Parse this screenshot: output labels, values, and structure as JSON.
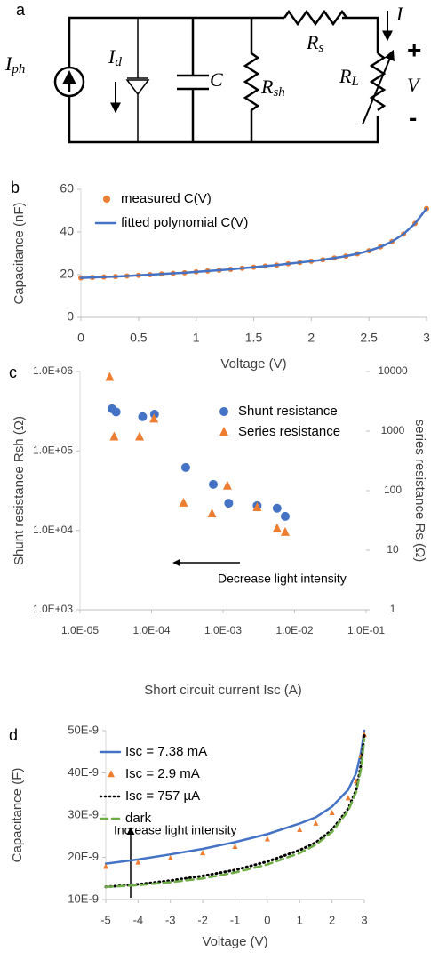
{
  "circuit": {
    "panel": "a",
    "source": [
      "I",
      "ph"
    ],
    "diode_current": [
      "I",
      "d"
    ],
    "capacitor": "C",
    "shunt": [
      "R",
      "sh"
    ],
    "series": [
      "R",
      "s"
    ],
    "load": [
      "R",
      "L"
    ],
    "current": "I",
    "plus": "+",
    "voltage": "V",
    "minus": "-"
  },
  "chart_data": [
    {
      "type": "line",
      "panel": "b",
      "xlabel": "Voltage (V)",
      "ylabel": "Capacitance (nF)",
      "x": [
        0,
        0.1,
        0.2,
        0.3,
        0.4,
        0.5,
        0.6,
        0.7,
        0.8,
        0.9,
        1,
        1.1,
        1.2,
        1.3,
        1.4,
        1.5,
        1.6,
        1.7,
        1.8,
        1.9,
        2,
        2.1,
        2.2,
        2.3,
        2.4,
        2.5,
        2.6,
        2.7,
        2.8,
        2.9,
        3
      ],
      "xlim": [
        0,
        3
      ],
      "xticks": [
        0,
        0.5,
        1,
        1.5,
        2,
        2.5,
        3
      ],
      "ylim": [
        0,
        60
      ],
      "yticks": [
        0,
        20,
        40,
        60
      ],
      "legend": "upper left",
      "series": [
        {
          "name": "measured C(V)",
          "color": "#ed7d31",
          "marker": "circle",
          "values": [
            18.5,
            18.7,
            18.9,
            19.1,
            19.4,
            19.7,
            20.0,
            20.3,
            20.6,
            20.9,
            21.3,
            21.7,
            22.1,
            22.5,
            23.0,
            23.5,
            24.0,
            24.5,
            25.1,
            25.7,
            26.3,
            27.0,
            27.8,
            28.7,
            29.8,
            31.2,
            33.0,
            35.5,
            39.0,
            44.0,
            51.0
          ]
        },
        {
          "name": "fitted polynomial C(V)",
          "color": "#4472c4",
          "line": "solid",
          "values": [
            18.5,
            18.7,
            18.9,
            19.1,
            19.4,
            19.7,
            20.0,
            20.3,
            20.6,
            20.9,
            21.3,
            21.7,
            22.1,
            22.5,
            23.0,
            23.5,
            24.0,
            24.5,
            25.1,
            25.7,
            26.3,
            27.0,
            27.8,
            28.7,
            29.8,
            31.2,
            33.0,
            35.5,
            39.0,
            44.0,
            51.0
          ]
        }
      ]
    },
    {
      "type": "scatter",
      "panel": "c",
      "xlabel": "Short circuit current Isc (A)",
      "ylabel": "Shunt resistance Rsh (Ω)",
      "y2label": "series resistance Rs (Ω)",
      "annotation": "Decrease light intensity",
      "xscale": "log",
      "yscale": "log",
      "y2scale": "log",
      "legend": "upper right",
      "xlim": [
        1e-05,
        0.1
      ],
      "xticks": [
        {
          "value": 1e-05,
          "label": "1.0E-05"
        },
        {
          "value": 0.0001,
          "label": "1.0E-04"
        },
        {
          "value": 0.001,
          "label": "1.0E-03"
        },
        {
          "value": 0.01,
          "label": "1.0E-02"
        },
        {
          "value": 0.1,
          "label": "1.0E-01"
        }
      ],
      "ylim": [
        1000,
        1000000
      ],
      "yticks": [
        {
          "value": 1000,
          "label": "1.0E+03"
        },
        {
          "value": 10000,
          "label": "1.0E+04"
        },
        {
          "value": 100000,
          "label": "1.0E+05"
        },
        {
          "value": 1000000,
          "label": "1.0E+06"
        }
      ],
      "y2lim": [
        1,
        10000
      ],
      "y2ticks": [
        1,
        10,
        100,
        1000,
        10000
      ],
      "series": [
        {
          "name": "Shunt resistance",
          "color": "#4472c4",
          "marker": "circle",
          "x": [
            2.8e-05,
            3.2e-05,
            7.5e-05,
            0.00011,
            0.0003,
            0.00073,
            0.0012,
            0.003,
            0.0057,
            0.0074
          ],
          "values": [
            340000,
            310000,
            270000,
            290000,
            62000,
            38000,
            22000,
            20500,
            19000,
            15000
          ]
        },
        {
          "name": "Series resistance",
          "color": "#ed7d31",
          "marker": "triangle",
          "axis": "y2",
          "x": [
            2.6e-05,
            3e-05,
            6.8e-05,
            0.000108,
            0.00028,
            0.0007,
            0.00115,
            0.003,
            0.0057,
            0.0074
          ],
          "values": [
            8000,
            800,
            800,
            1600,
            62,
            41,
            120,
            52,
            23,
            20
          ]
        }
      ]
    },
    {
      "type": "line",
      "panel": "d",
      "xlabel": "Voltage (V)",
      "ylabel": "Capacitance (F)",
      "annotation": "Increase light intensity",
      "legend": "upper left",
      "x": [
        -5,
        -4,
        -3,
        -2,
        -1,
        0,
        1,
        1.5,
        2,
        2.5,
        2.75,
        2.9,
        3
      ],
      "xlim": [
        -5,
        3
      ],
      "xticks": [
        -5,
        -4,
        -3,
        -2,
        -1,
        0,
        1,
        2,
        3
      ],
      "ylim": [
        1e-08,
        5e-08
      ],
      "yticks": [
        {
          "value": 1e-08,
          "label": "10E-9"
        },
        {
          "value": 2e-08,
          "label": "20E-9"
        },
        {
          "value": 3e-08,
          "label": "30E-9"
        },
        {
          "value": 4e-08,
          "label": "40E-9"
        },
        {
          "value": 5e-08,
          "label": "50E-9"
        }
      ],
      "series": [
        {
          "name": "Isc = 7.38 mA",
          "color": "#4472c4",
          "line": "solid",
          "values": [
            1.85e-08,
            1.95e-08,
            2.07e-08,
            2.2e-08,
            2.36e-08,
            2.55e-08,
            2.8e-08,
            2.95e-08,
            3.2e-08,
            3.6e-08,
            4e-08,
            4.5e-08,
            5e-08
          ]
        },
        {
          "name": "Isc = 2.9 mA",
          "color": "#ed7d31",
          "marker": "triangle",
          "values": [
            1.78e-08,
            1.88e-08,
            1.98e-08,
            2.1e-08,
            2.25e-08,
            2.43e-08,
            2.65e-08,
            2.8e-08,
            3.05e-08,
            3.4e-08,
            3.8e-08,
            4.4e-08,
            4.9e-08
          ]
        },
        {
          "name": "Isc = 757 µA",
          "color": "#000000",
          "line": "dotted",
          "values": [
            1.3e-08,
            1.36e-08,
            1.45e-08,
            1.56e-08,
            1.7e-08,
            1.9e-08,
            2.17e-08,
            2.35e-08,
            2.65e-08,
            3.15e-08,
            3.6e-08,
            4.2e-08,
            4.9e-08
          ]
        },
        {
          "name": "dark",
          "color": "#70ad47",
          "line": "dashed",
          "values": [
            1.3e-08,
            1.34e-08,
            1.41e-08,
            1.5e-08,
            1.64e-08,
            1.83e-08,
            2.1e-08,
            2.3e-08,
            2.6e-08,
            3.1e-08,
            3.55e-08,
            4.1e-08,
            4.8e-08
          ]
        }
      ]
    }
  ]
}
